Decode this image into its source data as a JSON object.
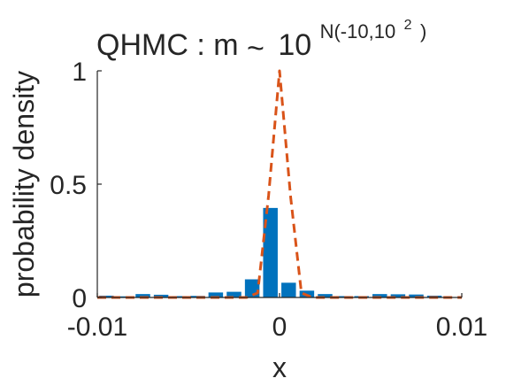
{
  "chart_data": {
    "type": "bar",
    "title": {
      "prefix": "QHMC : m",
      "tilde": "~",
      "base": "10",
      "sup_open": "N(-10,10",
      "sup_power": "2",
      "sup_close": ")"
    },
    "xlabel": "x",
    "ylabel": "probability density",
    "xlim": [
      -0.01,
      0.01
    ],
    "ylim": [
      0,
      1
    ],
    "xticks": [
      {
        "value": -0.01,
        "label": "-0.01"
      },
      {
        "value": 0,
        "label": "0"
      },
      {
        "value": 0.01,
        "label": "0.01"
      }
    ],
    "yticks": [
      {
        "value": 0,
        "label": "0"
      },
      {
        "value": 0.5,
        "label": "0.5"
      },
      {
        "value": 1,
        "label": "1"
      }
    ],
    "grid": false,
    "histogram": {
      "bin_width": 0.001,
      "bin_centers": [
        -0.0095,
        -0.0085,
        -0.0075,
        -0.0065,
        -0.0055,
        -0.0045,
        -0.0035,
        -0.0025,
        -0.0015,
        -0.0005,
        0.0005,
        0.0015,
        0.0025,
        0.0035,
        0.0045,
        0.0055,
        0.0065,
        0.0075,
        0.0085,
        0.0095
      ],
      "values": [
        0.008,
        0.005,
        0.015,
        0.012,
        0.006,
        0.007,
        0.022,
        0.025,
        0.08,
        0.395,
        0.065,
        0.03,
        0.015,
        0.006,
        0.006,
        0.015,
        0.014,
        0.013,
        0.008,
        0.002
      ],
      "color": "#0072BD"
    },
    "density_curve": {
      "style": "dashed",
      "color": "#D95319",
      "x": [
        -0.01,
        -0.003,
        -0.0018,
        -0.0012,
        -0.0006,
        0,
        0.0006,
        0.0012,
        0.0018,
        0.003,
        0.01
      ],
      "y": [
        0,
        0,
        0.0,
        0.02,
        0.45,
        1.0,
        0.45,
        0.02,
        0.0,
        0,
        0
      ]
    }
  }
}
